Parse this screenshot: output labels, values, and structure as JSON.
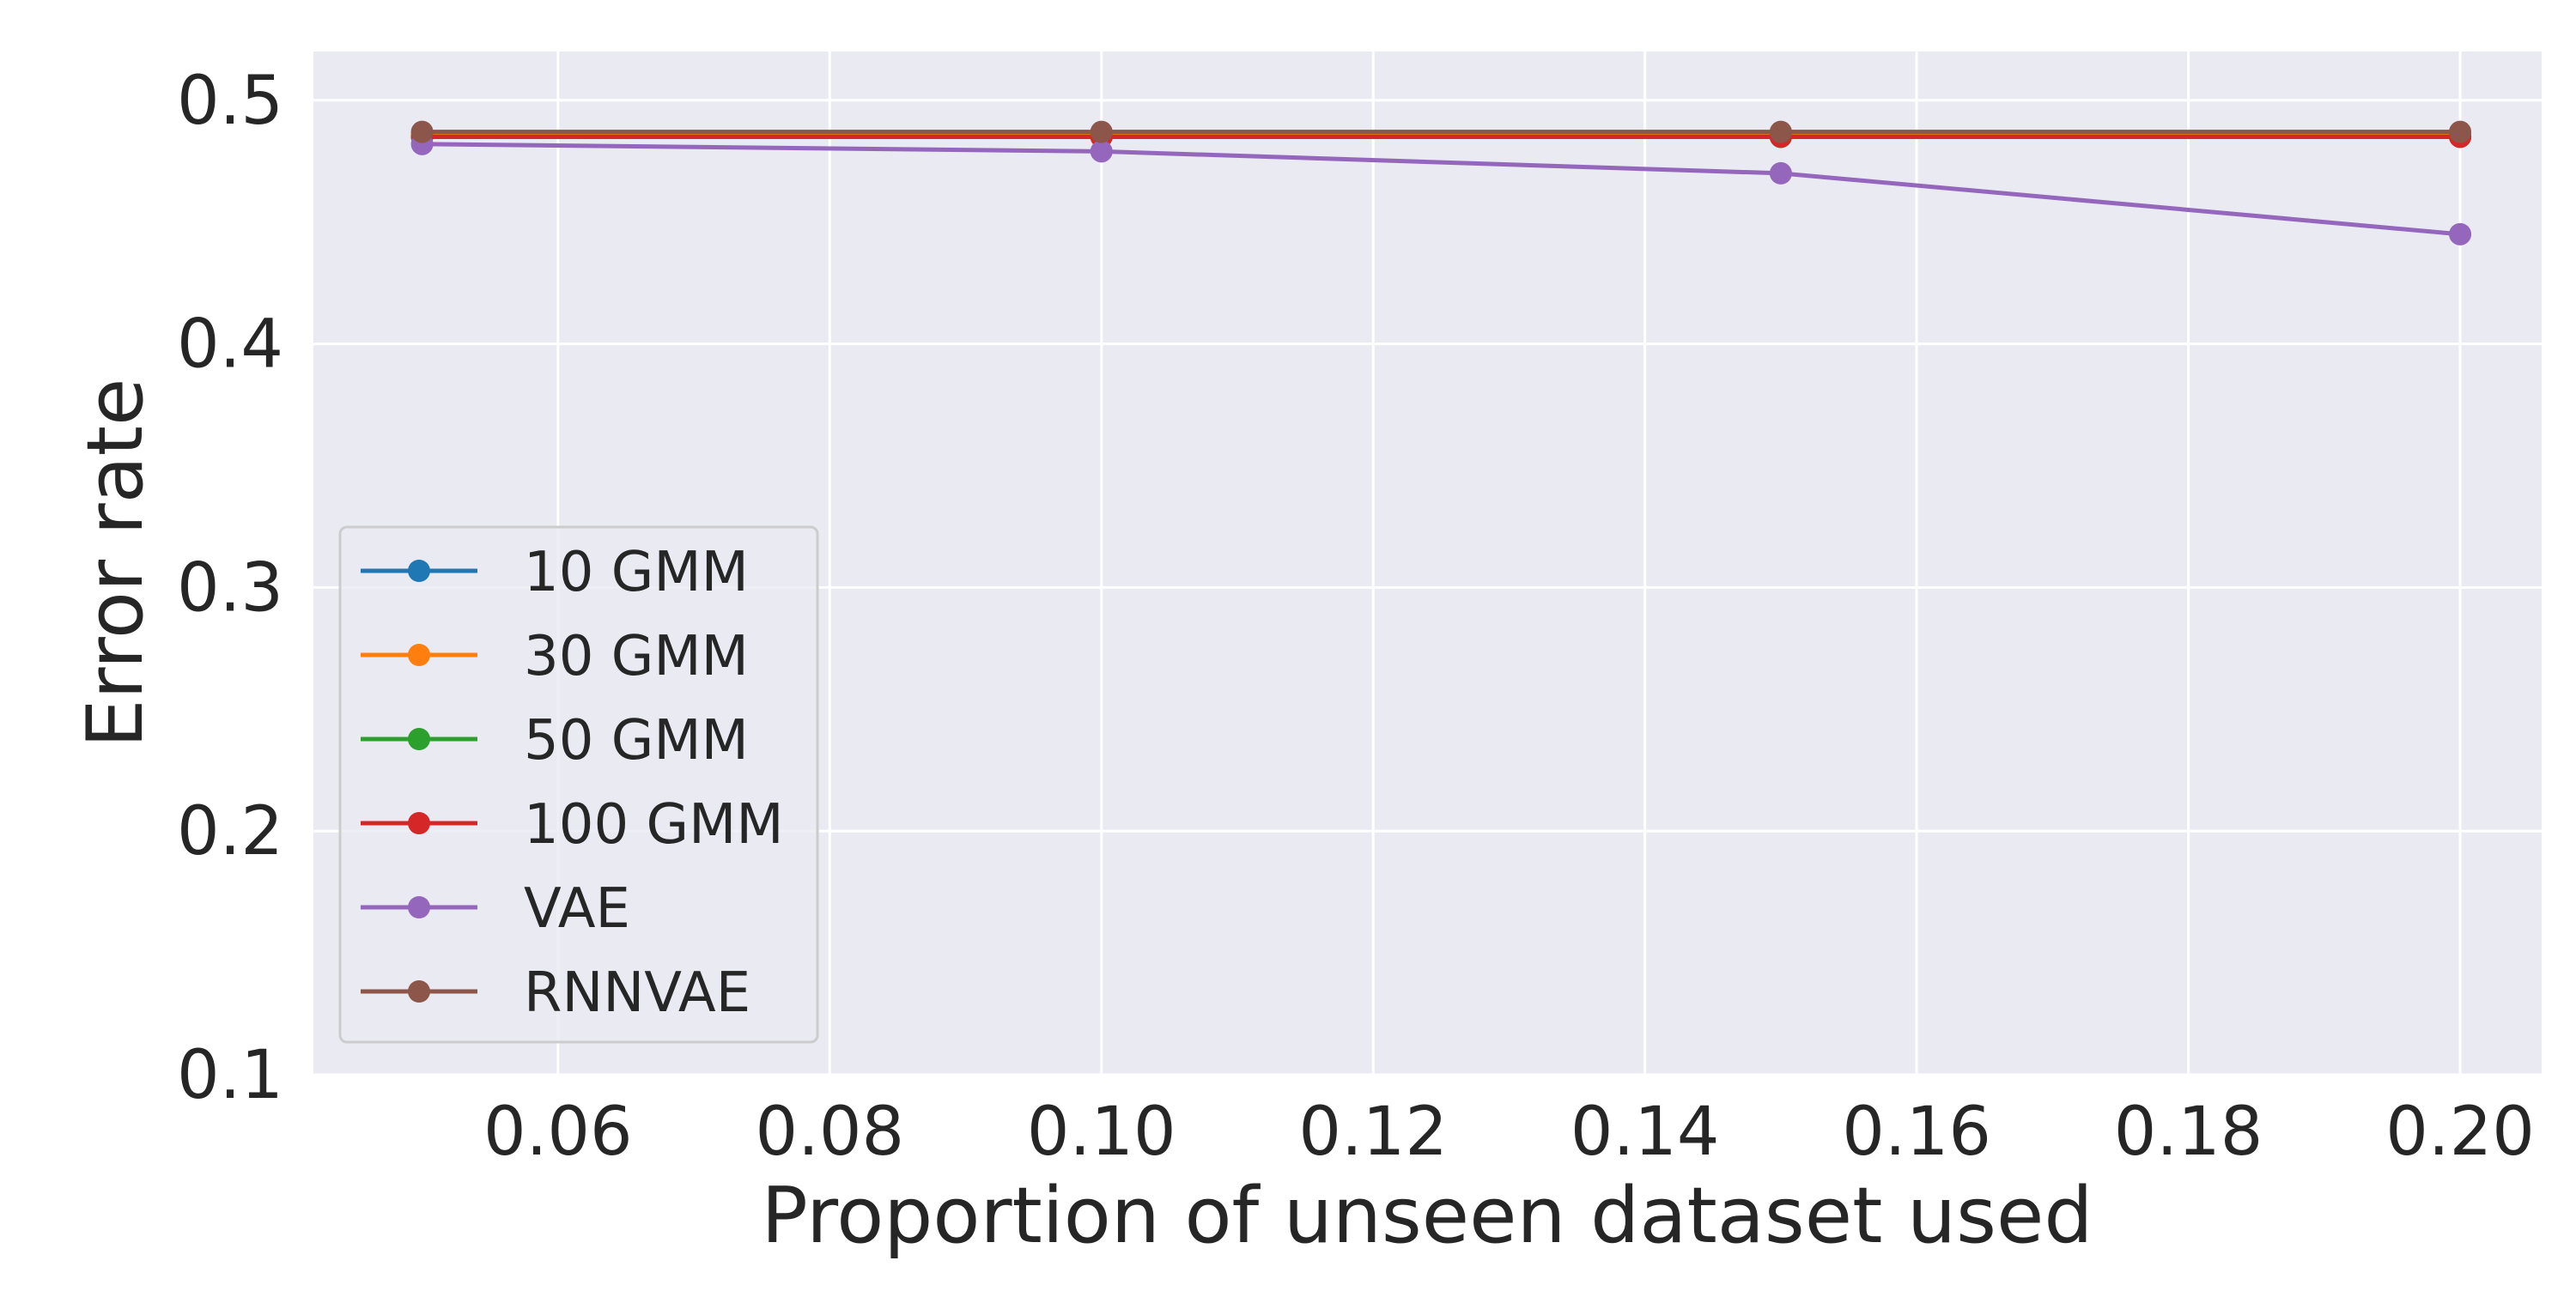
{
  "chart_data": {
    "type": "line",
    "title": "",
    "xlabel": "Proportion of unseen dataset used",
    "ylabel": "Error rate",
    "xlim": [
      0.042,
      0.206
    ],
    "ylim": [
      0.1,
      0.52
    ],
    "xticks": [
      0.06,
      0.08,
      0.1,
      0.12,
      0.14,
      0.16,
      0.18,
      0.2
    ],
    "xtick_labels": [
      "0.06",
      "0.08",
      "0.10",
      "0.12",
      "0.14",
      "0.16",
      "0.18",
      "0.20"
    ],
    "yticks": [
      0.1,
      0.2,
      0.3,
      0.4,
      0.5
    ],
    "ytick_labels": [
      "0.1",
      "0.2",
      "0.3",
      "0.4",
      "0.5"
    ],
    "grid": true,
    "legend_position": "bottom-left",
    "x": [
      0.05,
      0.1,
      0.15,
      0.2
    ],
    "series": [
      {
        "name": "10 GMM",
        "color": "#1f77b4",
        "values": [
          0.485,
          0.485,
          0.485,
          0.485
        ]
      },
      {
        "name": "30 GMM",
        "color": "#ff7f0e",
        "values": [
          0.486,
          0.486,
          0.486,
          0.486
        ]
      },
      {
        "name": "50 GMM",
        "color": "#2ca02c",
        "values": [
          0.485,
          0.485,
          0.485,
          0.485
        ]
      },
      {
        "name": "100 GMM",
        "color": "#d62728",
        "values": [
          0.485,
          0.485,
          0.485,
          0.485
        ]
      },
      {
        "name": "VAE",
        "color": "#9467bd",
        "values": [
          0.482,
          0.479,
          0.47,
          0.445
        ]
      },
      {
        "name": "RNNVAE",
        "color": "#8c564b",
        "values": [
          0.487,
          0.487,
          0.487,
          0.487
        ]
      }
    ]
  }
}
